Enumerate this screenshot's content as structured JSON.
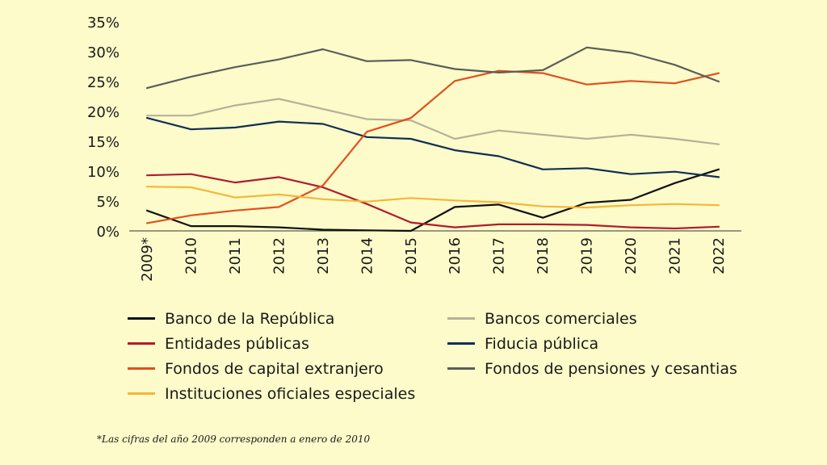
{
  "chart_data": {
    "type": "line",
    "title": "",
    "xlabel": "",
    "ylabel": "",
    "ylim": [
      0,
      35
    ],
    "yticks": [
      "0%",
      "5%",
      "10%",
      "15%",
      "20%",
      "25%",
      "30%",
      "35%"
    ],
    "categories": [
      "2009*",
      "2010",
      "2011",
      "2012",
      "2013",
      "2014",
      "2015",
      "2016",
      "2017",
      "2018",
      "2019",
      "2020",
      "2021",
      "2022"
    ],
    "grid": false,
    "legend_position": "bottom",
    "series": [
      {
        "name": "Banco de la República",
        "color": "#111111",
        "values": [
          3.4,
          0.8,
          0.8,
          0.6,
          0.2,
          0.1,
          0.0,
          4.0,
          4.4,
          2.2,
          4.7,
          5.2,
          8.0,
          10.3
        ]
      },
      {
        "name": "Bancos comerciales",
        "color": "#b5b19a",
        "values": [
          19.3,
          19.3,
          21.0,
          22.1,
          20.4,
          18.7,
          18.5,
          15.4,
          16.8,
          16.1,
          15.4,
          16.1,
          15.4,
          14.5
        ]
      },
      {
        "name": "Entidades públicas",
        "color": "#b01c2e",
        "values": [
          9.3,
          9.5,
          8.1,
          9.0,
          7.3,
          4.5,
          1.4,
          0.6,
          1.1,
          1.1,
          1.0,
          0.6,
          0.4,
          0.7
        ]
      },
      {
        "name": "Fiducia pública",
        "color": "#0e2f57",
        "values": [
          18.9,
          17.0,
          17.3,
          18.3,
          17.9,
          15.7,
          15.4,
          13.5,
          12.5,
          10.3,
          10.5,
          9.5,
          9.9,
          9.0
        ]
      },
      {
        "name": "Fondos de capital extranjero",
        "color": "#e1501e",
        "values": [
          1.3,
          2.6,
          3.4,
          4.0,
          7.6,
          16.6,
          18.9,
          25.1,
          26.8,
          26.4,
          24.5,
          25.1,
          24.7,
          26.4
        ]
      },
      {
        "name": "Fondos de pensiones y cesantias",
        "color": "#5b5d5b",
        "values": [
          23.9,
          25.8,
          27.4,
          28.7,
          30.4,
          28.4,
          28.6,
          27.1,
          26.5,
          26.9,
          30.7,
          29.8,
          27.8,
          25.0
        ]
      },
      {
        "name": "Instituciones oficiales especiales",
        "color": "#f4b63c",
        "values": [
          7.4,
          7.3,
          5.6,
          6.1,
          5.3,
          4.9,
          5.5,
          5.1,
          4.8,
          4.1,
          3.9,
          4.3,
          4.5,
          4.3
        ]
      }
    ]
  },
  "footnote": "*Las cifras del año 2009 corresponden a enero de 2010"
}
